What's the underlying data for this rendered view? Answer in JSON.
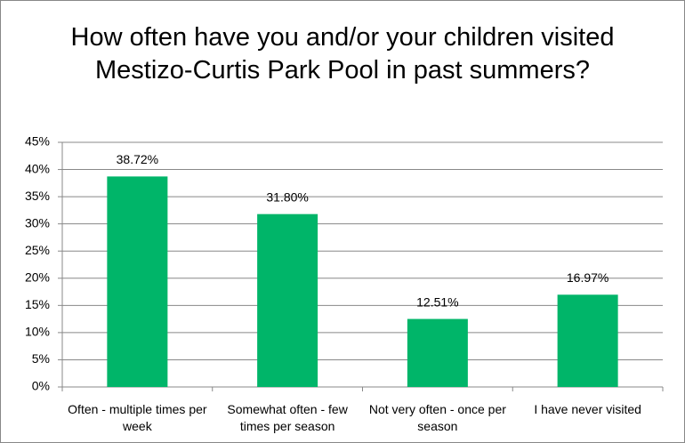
{
  "chart_data": {
    "type": "bar",
    "title": "How often have you and/or your children visited Mestizo-Curtis Park Pool in past summers?",
    "categories": [
      "Often - multiple times per week",
      "Somewhat often - few times per season",
      "Not very often - once per season",
      "I have never visited"
    ],
    "values": [
      38.72,
      31.8,
      12.51,
      16.97
    ],
    "value_labels": [
      "38.72%",
      "31.80%",
      "12.51%",
      "16.97%"
    ],
    "color": "#00b569",
    "ylim": [
      0,
      45
    ],
    "yticks": [
      {
        "value": 0,
        "label": "0%"
      },
      {
        "value": 5,
        "label": "5%"
      },
      {
        "value": 10,
        "label": "10%"
      },
      {
        "value": 15,
        "label": "15%"
      },
      {
        "value": 20,
        "label": "20%"
      },
      {
        "value": 25,
        "label": "25%"
      },
      {
        "value": 30,
        "label": "30%"
      },
      {
        "value": 35,
        "label": "35%"
      },
      {
        "value": 40,
        "label": "40%"
      },
      {
        "value": 45,
        "label": "45%"
      }
    ],
    "grid": true
  }
}
